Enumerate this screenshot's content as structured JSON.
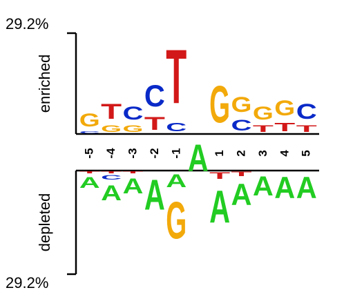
{
  "chart_data": {
    "type": "sequence-logo",
    "scale_top_label": "29.2%",
    "scale_bottom_label": "29.2%",
    "y_max_percent": 29.2,
    "enriched_label": "enriched",
    "depleted_label": "depleted",
    "positions": [
      {
        "label": "-5",
        "enriched": [
          {
            "base": "C",
            "pct": 1.0
          },
          {
            "base": "G",
            "pct": 6.0
          }
        ],
        "depleted": [
          {
            "base": "T",
            "pct": 1.0
          },
          {
            "base": "A",
            "pct": 5.0
          }
        ]
      },
      {
        "label": "-4",
        "enriched": [
          {
            "base": "G",
            "pct": 3.0
          },
          {
            "base": "T",
            "pct": 7.0
          }
        ],
        "depleted": [
          {
            "base": "T",
            "pct": 1.0
          },
          {
            "base": "C",
            "pct": 2.0
          },
          {
            "base": "A",
            "pct": 7.0
          }
        ]
      },
      {
        "label": "-3",
        "enriched": [
          {
            "base": "G",
            "pct": 3.0
          },
          {
            "base": "C",
            "pct": 6.0
          }
        ],
        "depleted": [
          {
            "base": "T",
            "pct": 1.0
          },
          {
            "base": "A",
            "pct": 7.0
          }
        ]
      },
      {
        "label": "-2",
        "enriched": [
          {
            "base": "T",
            "pct": 6.0
          },
          {
            "base": "C",
            "pct": 10.0
          }
        ],
        "depleted": [
          {
            "base": "A",
            "pct": 14.0
          }
        ]
      },
      {
        "label": "-1",
        "enriched": [
          {
            "base": "C",
            "pct": 4.0
          },
          {
            "base": "T",
            "pct": 25.0
          }
        ],
        "depleted": [
          {
            "base": "A",
            "pct": 6.0
          },
          {
            "base": "G",
            "pct": 17.0
          }
        ]
      },
      {
        "label": "",
        "enriched": [],
        "depleted": [
          {
            "base": "A",
            "pct": 12.5
          }
        ]
      },
      {
        "label": "1",
        "enriched": [
          {
            "base": "G",
            "pct": 17.0
          }
        ],
        "depleted": [
          {
            "base": "T",
            "pct": 3.0
          },
          {
            "base": "A",
            "pct": 15.0
          }
        ]
      },
      {
        "label": "2",
        "enriched": [
          {
            "base": "C",
            "pct": 5.0
          },
          {
            "base": "G",
            "pct": 7.0
          }
        ],
        "depleted": [
          {
            "base": "T",
            "pct": 2.0
          },
          {
            "base": "A",
            "pct": 10.0
          }
        ]
      },
      {
        "label": "3",
        "enriched": [
          {
            "base": "T",
            "pct": 3.0
          },
          {
            "base": "G",
            "pct": 6.0
          }
        ],
        "depleted": [
          {
            "base": "A",
            "pct": 9.0
          }
        ]
      },
      {
        "label": "4",
        "enriched": [
          {
            "base": "T",
            "pct": 4.0
          },
          {
            "base": "G",
            "pct": 7.0
          }
        ],
        "depleted": [
          {
            "base": "A",
            "pct": 10.0
          }
        ]
      },
      {
        "label": "5",
        "enriched": [
          {
            "base": "T",
            "pct": 3.0
          },
          {
            "base": "C",
            "pct": 7.0
          }
        ],
        "depleted": [
          {
            "base": "A",
            "pct": 10.0
          }
        ]
      }
    ],
    "colors": {
      "A": "#22cc22",
      "C": "#0a2ac8",
      "G": "#f2a90a",
      "T": "#d21818"
    },
    "grid": false
  }
}
